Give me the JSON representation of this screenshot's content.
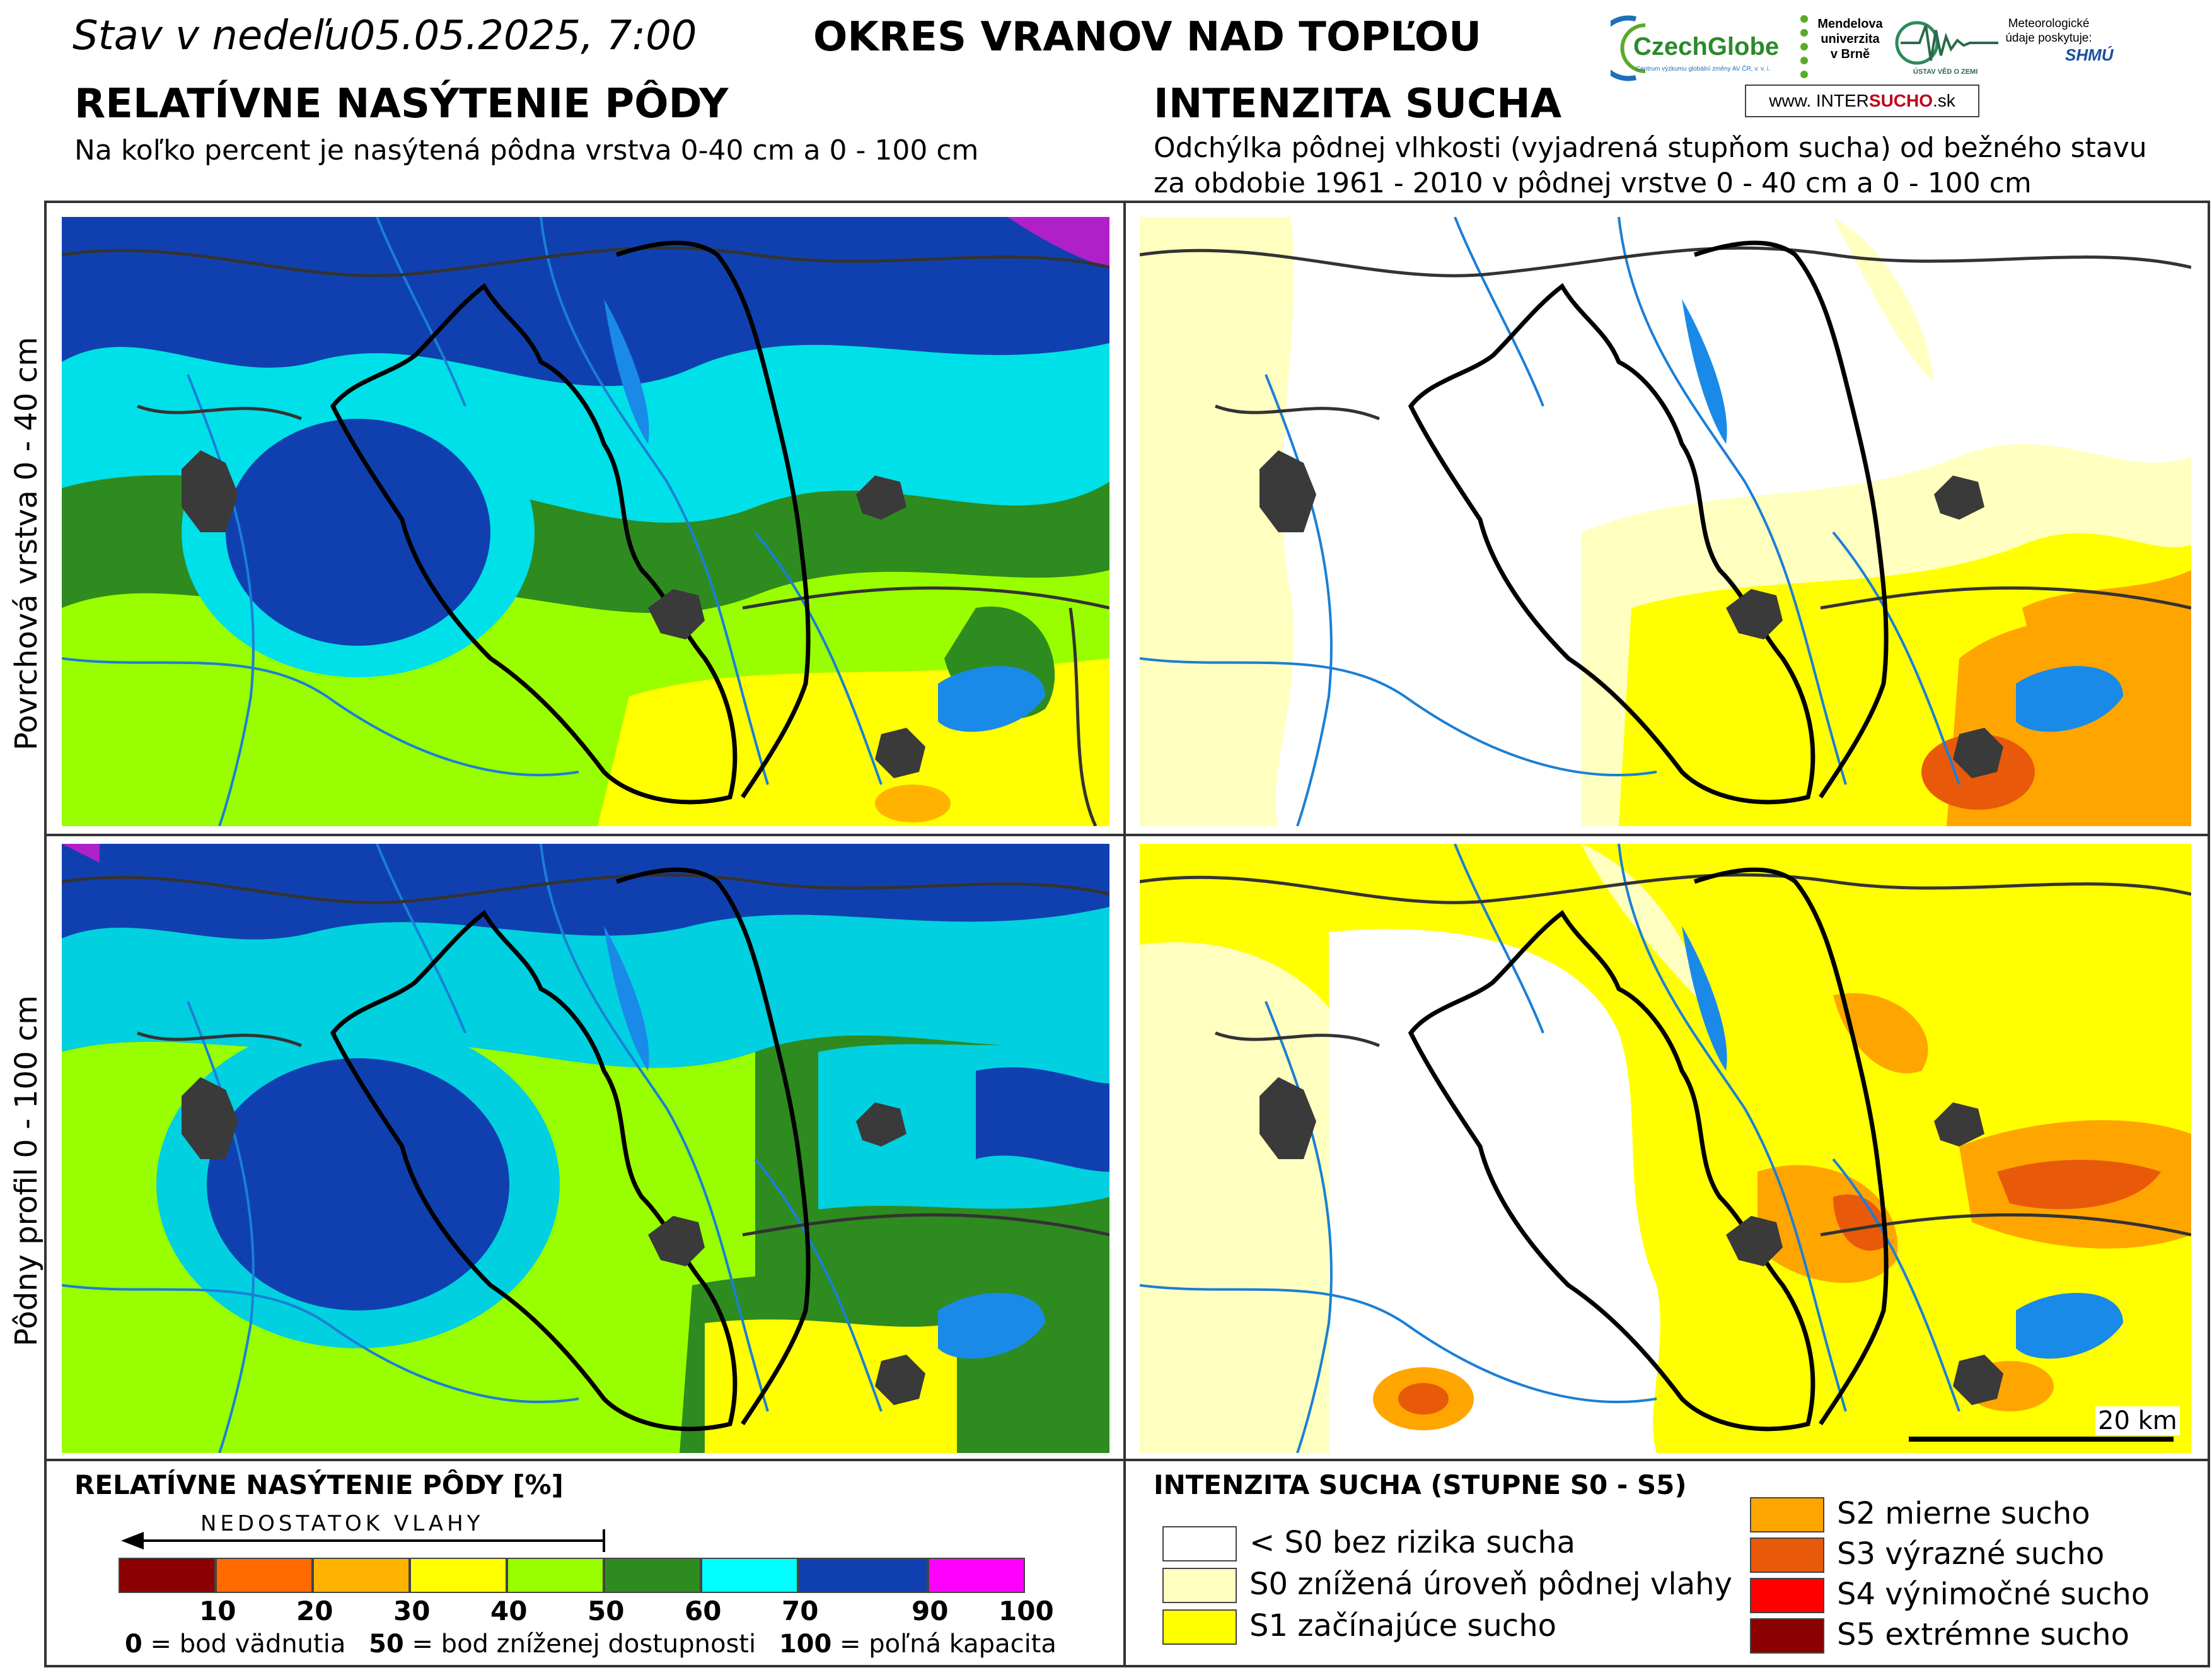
{
  "header": {
    "date_text": "Stav v nedeľu05.05.2025, 7:00",
    "title": "OKRES  VRANOV NAD TOPĽOU"
  },
  "logos": {
    "czechglobe": "CzechGlobe",
    "czechglobe_sub": "Centrum výzkumu globální změny AV ČR, v. v. i.",
    "mendelu": "Mendelova univerzita v Brně",
    "uvgz": "ÚSTAV VĚD O ZEMI",
    "meteo": "Meteorologické údaje poskytuje:",
    "shmu": "SHMÚ",
    "intersucho_prefix": "www. INTER",
    "intersucho_bold": "SUCHO",
    "intersucho_suffix": ".sk"
  },
  "left_section": {
    "title": "RELATÍVNE NASÝTENIE PÔDY",
    "subtitle": "Na koľko percent je nasýtená pôdna vrstva 0-40 cm a 0 - 100 cm"
  },
  "right_section": {
    "title": "INTENZITA SUCHA",
    "subtitle_line1": "Odchýlka pôdnej vlhkosti (vyjadrená stupňom sucha) od bežného stavu",
    "subtitle_line2": "za obdobie 1961 - 2010 v pôdnej vrstve 0 - 40 cm a 0 - 100 cm"
  },
  "rows": {
    "top_label": "Povrchová vrstva 0 - 40 cm",
    "bottom_label": "Pôdny profil 0 - 100 cm"
  },
  "scale_bar": {
    "label": "20 km"
  },
  "saturation_legend": {
    "title": "RELATÍVNE NASÝTENIE PÔDY [%]",
    "arrow_label": "NEDOSTATOK VLAHY",
    "bins": [
      {
        "color": "#8b0000"
      },
      {
        "color": "#ff6a00"
      },
      {
        "color": "#ffb300"
      },
      {
        "color": "#ffff00"
      },
      {
        "color": "#99ff00"
      },
      {
        "color": "#2e8b1f"
      },
      {
        "color": "#00ffff"
      },
      {
        "color": "#1040b0"
      },
      {
        "color": "#ff00ff"
      }
    ],
    "ticks": [
      "10",
      "20",
      "30",
      "40",
      "50",
      "60",
      "70",
      "90",
      "100"
    ],
    "note_0_value": "0",
    "note_0_text": " = bod vädnutia",
    "note_50_value": "50",
    "note_50_text": " = bod zníženej dostupnosti",
    "note_100_value": "100",
    "note_100_text": " = poľná kapacita"
  },
  "drought_legend": {
    "title": "INTENZITA SUCHA (STUPNE S0 - S5)",
    "items": [
      {
        "label": "< S0 bez rizika sucha",
        "color": "#ffffff"
      },
      {
        "label": "S0 znížená úroveň pôdnej vlahy",
        "color": "#ffffc0"
      },
      {
        "label": "S1 začínajúce sucho",
        "color": "#ffff00"
      },
      {
        "label": "S2 mierne sucho",
        "color": "#ffa500"
      },
      {
        "label": "S3 výrazné sucho",
        "color": "#e85a0a"
      },
      {
        "label": "S4 výnimočné sucho",
        "color": "#ff0000"
      },
      {
        "label": "S5 extrémne sucho",
        "color": "#8b0000"
      }
    ]
  }
}
